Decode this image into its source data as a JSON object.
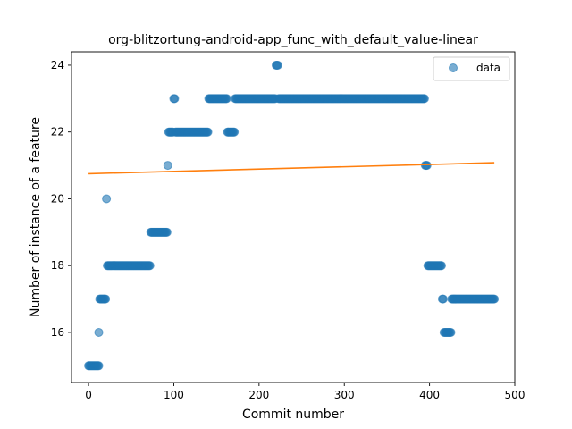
{
  "chart_data": {
    "type": "scatter",
    "title": "org-blitzortung-android-app_func_with_default_value-linear",
    "xlabel": "Commit number",
    "ylabel": "Number of instance of a feature",
    "xlim": [
      -20,
      500
    ],
    "ylim": [
      14.5,
      24.4
    ],
    "xticks": [
      0,
      100,
      200,
      300,
      400,
      500
    ],
    "yticks": [
      16,
      18,
      20,
      22,
      24
    ],
    "grid": false,
    "legend": {
      "position": "top-right",
      "entries": [
        "data"
      ]
    },
    "colors": {
      "points": "#1f77b4",
      "trend": "#ff7f0e"
    },
    "series": [
      {
        "name": "data",
        "runs": [
          {
            "x_start": 0,
            "x_end": 12,
            "y": 15
          },
          {
            "x_start": 12,
            "x_end": 12,
            "y": 16
          },
          {
            "x_start": 13,
            "x_end": 20,
            "y": 17
          },
          {
            "x_start": 21,
            "x_end": 21,
            "y": 20
          },
          {
            "x_start": 22,
            "x_end": 72,
            "y": 18
          },
          {
            "x_start": 73,
            "x_end": 92,
            "y": 19
          },
          {
            "x_start": 93,
            "x_end": 93,
            "y": 21
          },
          {
            "x_start": 94,
            "x_end": 99,
            "y": 22
          },
          {
            "x_start": 100,
            "x_end": 101,
            "y": 23
          },
          {
            "x_start": 102,
            "x_end": 140,
            "y": 22
          },
          {
            "x_start": 141,
            "x_end": 162,
            "y": 23
          },
          {
            "x_start": 163,
            "x_end": 171,
            "y": 22
          },
          {
            "x_start": 172,
            "x_end": 219,
            "y": 23
          },
          {
            "x_start": 220,
            "x_end": 222,
            "y": 24
          },
          {
            "x_start": 223,
            "x_end": 394,
            "y": 23
          },
          {
            "x_start": 395,
            "x_end": 397,
            "y": 21
          },
          {
            "x_start": 398,
            "x_end": 414,
            "y": 18
          },
          {
            "x_start": 415,
            "x_end": 416,
            "y": 17
          },
          {
            "x_start": 417,
            "x_end": 425,
            "y": 16
          },
          {
            "x_start": 426,
            "x_end": 476,
            "y": 17
          }
        ]
      }
    ],
    "trend_line": {
      "x": [
        0,
        476
      ],
      "y": [
        20.75,
        21.08
      ]
    }
  }
}
